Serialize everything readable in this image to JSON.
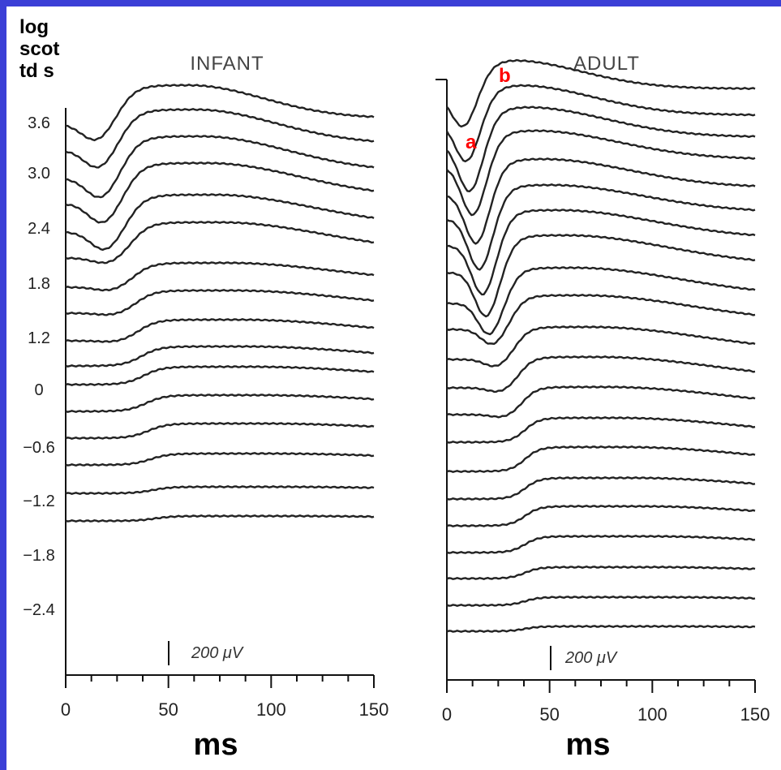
{
  "y_axis_title": [
    "log",
    "scot",
    "td s"
  ],
  "peak_labels": {
    "a": "a",
    "b": "b"
  },
  "x_axis_label": "ms",
  "chart_data": [
    {
      "type": "line",
      "title": "INFANT",
      "xlabel": "ms",
      "ylabel": "log scot td s",
      "xlim": [
        0,
        150
      ],
      "x_ticks": [
        0,
        50,
        100,
        150
      ],
      "intensity_ticks": [
        "3.6",
        "3.0",
        "2.4",
        "1.8",
        "1.2",
        "0",
        "−0.6",
        "−1.2",
        "−1.8",
        "−2.4"
      ],
      "scale_bar": "200 μV",
      "trace_count": 16,
      "grid": false,
      "legend": "none"
    },
    {
      "type": "line",
      "title": "ADULT",
      "xlabel": "ms",
      "xlim": [
        0,
        150
      ],
      "x_ticks": [
        0,
        50,
        100,
        150
      ],
      "scale_bar": "200 μV",
      "trace_count": 21,
      "annotations": [
        "a",
        "b"
      ],
      "grid": false,
      "legend": "none"
    }
  ]
}
